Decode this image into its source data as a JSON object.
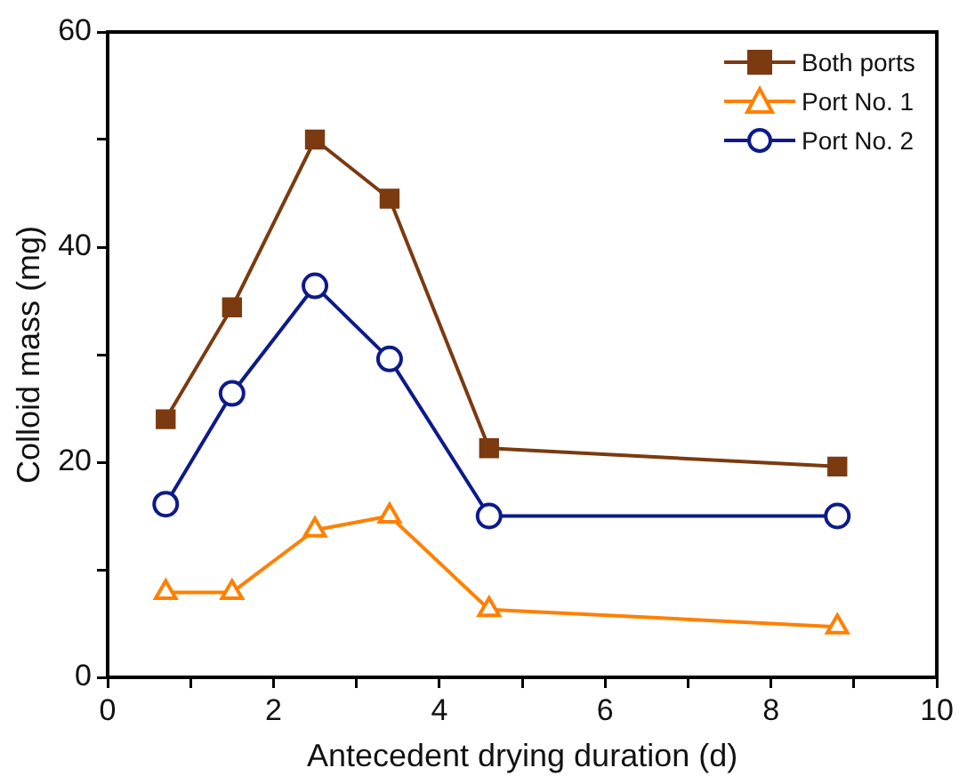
{
  "chart_data": {
    "type": "line",
    "xlabel": "Antecedent drying duration (d)",
    "ylabel": "Colloid mass (mg)",
    "xlim": [
      0,
      10
    ],
    "xticks": [
      0,
      {
        "value": 1,
        "label": null
      },
      2,
      {
        "value": 3,
        "label": null
      },
      4,
      {
        "value": 5,
        "label": null
      },
      6,
      {
        "value": 7,
        "label": null
      },
      8,
      {
        "value": 9,
        "label": null
      },
      10
    ],
    "ylim": [
      0,
      60
    ],
    "yticks": [
      0,
      {
        "value": 10,
        "label": null
      },
      20,
      {
        "value": 30,
        "label": null
      },
      40,
      {
        "value": 50,
        "label": null
      },
      60
    ],
    "grid": false,
    "legend": "top right",
    "line_style": "solid",
    "x": [
      0.7,
      1.5,
      2.5,
      3.4,
      4.6,
      8.8
    ],
    "series": [
      {
        "name": "Both ports",
        "color": "#7b3a10",
        "marker": "square",
        "values": [
          24,
          34.4,
          50,
          44.5,
          21.3,
          19.6
        ]
      },
      {
        "name": "Port No. 1",
        "color": "#ff8000",
        "marker": "triangle",
        "values": [
          7.9,
          7.9,
          13.7,
          15,
          6.3,
          4.7
        ]
      },
      {
        "name": "Port No. 2",
        "color": "#0d1a8a",
        "marker": "circle",
        "values": [
          16.1,
          26.4,
          36.4,
          29.6,
          15,
          15
        ]
      }
    ]
  }
}
